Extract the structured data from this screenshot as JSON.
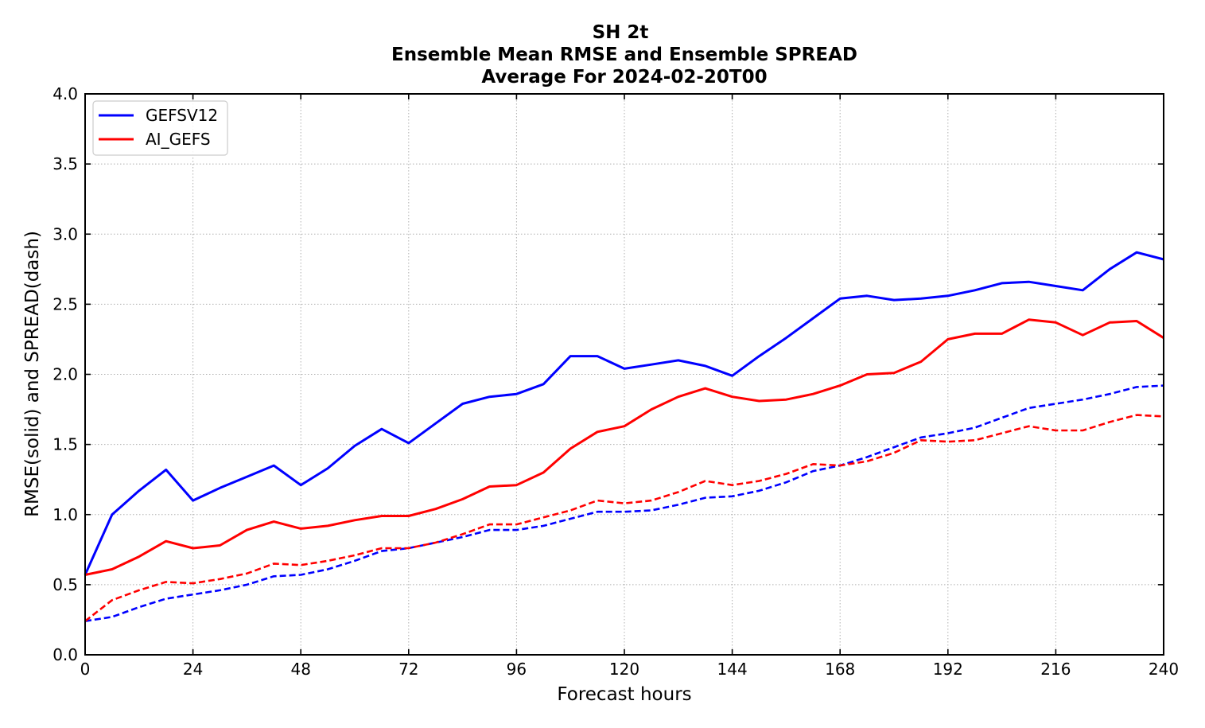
{
  "chart_data": {
    "type": "line",
    "title": "SH 2t",
    "subtitle": "Ensemble Mean RMSE and Ensemble SPREAD",
    "subtitle2": "Average For 2024-02-20T00",
    "xlabel": "Forecast hours",
    "ylabel": "RMSE(solid) and SPREAD(dash)",
    "xlim": [
      0,
      240
    ],
    "ylim": [
      0.0,
      4.0
    ],
    "xticks": [
      0,
      24,
      48,
      72,
      96,
      120,
      144,
      168,
      192,
      216,
      240
    ],
    "xtick_labels": [
      "0",
      "24",
      "48",
      "72",
      "96",
      "120",
      "144",
      "168",
      "192",
      "216",
      "240"
    ],
    "yticks": [
      0.0,
      0.5,
      1.0,
      1.5,
      2.0,
      2.5,
      3.0,
      3.5,
      4.0
    ],
    "ytick_labels": [
      "0.0",
      "0.5",
      "1.0",
      "1.5",
      "2.0",
      "2.5",
      "3.0",
      "3.5",
      "4.0"
    ],
    "grid": true,
    "legend_position": "top-left",
    "x": [
      0,
      6,
      12,
      18,
      24,
      30,
      36,
      42,
      48,
      54,
      60,
      66,
      72,
      78,
      84,
      90,
      96,
      102,
      108,
      114,
      120,
      126,
      132,
      138,
      144,
      150,
      156,
      162,
      168,
      174,
      180,
      186,
      192,
      198,
      204,
      210,
      216,
      222,
      228,
      234,
      240
    ],
    "series": [
      {
        "name": "GEFSV12",
        "metric": "RMSE",
        "style": "solid",
        "color": "#0000ff",
        "values": [
          0.57,
          1.0,
          1.17,
          1.32,
          1.1,
          1.19,
          1.27,
          1.35,
          1.21,
          1.33,
          1.49,
          1.61,
          1.51,
          1.65,
          1.79,
          1.84,
          1.86,
          1.93,
          2.13,
          2.13,
          2.04,
          2.07,
          2.1,
          2.06,
          1.99,
          2.13,
          2.26,
          2.4,
          2.54,
          2.56,
          2.53,
          2.54,
          2.56,
          2.6,
          2.65,
          2.66,
          2.63,
          2.6,
          2.75,
          2.87,
          2.82
        ]
      },
      {
        "name": "AI_GEFS",
        "metric": "RMSE",
        "style": "solid",
        "color": "#ff0000",
        "values": [
          0.57,
          0.61,
          0.7,
          0.81,
          0.76,
          0.78,
          0.89,
          0.95,
          0.9,
          0.92,
          0.96,
          0.99,
          0.99,
          1.04,
          1.11,
          1.2,
          1.21,
          1.3,
          1.47,
          1.59,
          1.63,
          1.75,
          1.84,
          1.9,
          1.84,
          1.81,
          1.82,
          1.86,
          1.92,
          2.0,
          2.01,
          2.09,
          2.25,
          2.29,
          2.29,
          2.39,
          2.37,
          2.28,
          2.37,
          2.38,
          2.26
        ]
      },
      {
        "metric": "SPREAD",
        "style": "dash",
        "color": "#0000ff",
        "values": [
          0.24,
          0.27,
          0.34,
          0.4,
          0.43,
          0.46,
          0.5,
          0.56,
          0.57,
          0.61,
          0.67,
          0.74,
          0.76,
          0.8,
          0.84,
          0.89,
          0.89,
          0.92,
          0.97,
          1.02,
          1.02,
          1.03,
          1.07,
          1.12,
          1.13,
          1.17,
          1.23,
          1.31,
          1.35,
          1.41,
          1.48,
          1.55,
          1.58,
          1.62,
          1.69,
          1.76,
          1.79,
          1.82,
          1.86,
          1.91,
          1.92
        ]
      },
      {
        "metric": "SPREAD",
        "style": "dash",
        "color": "#ff0000",
        "values": [
          0.24,
          0.39,
          0.46,
          0.52,
          0.51,
          0.54,
          0.58,
          0.65,
          0.64,
          0.67,
          0.71,
          0.76,
          0.76,
          0.8,
          0.86,
          0.93,
          0.93,
          0.98,
          1.03,
          1.1,
          1.08,
          1.1,
          1.16,
          1.24,
          1.21,
          1.24,
          1.29,
          1.36,
          1.35,
          1.38,
          1.44,
          1.53,
          1.52,
          1.53,
          1.58,
          1.63,
          1.6,
          1.6,
          1.66,
          1.71,
          1.7
        ]
      }
    ]
  }
}
